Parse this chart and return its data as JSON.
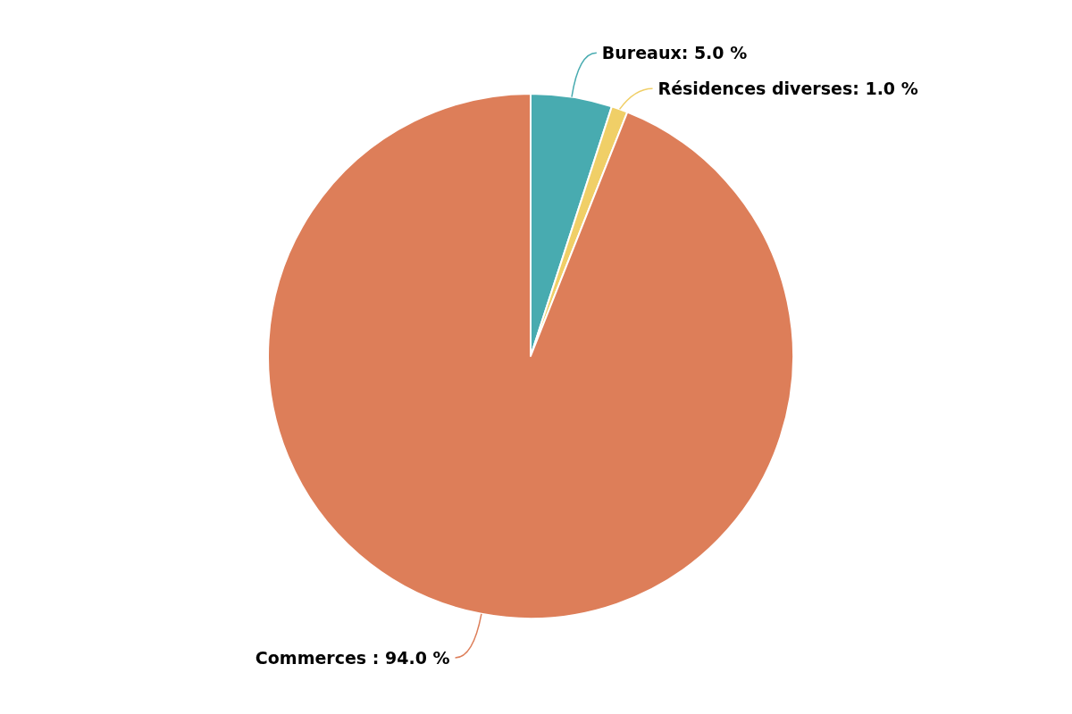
{
  "chart_data": {
    "type": "pie",
    "categories": [
      "Bureaux",
      "Résidences diverses",
      "Commerces"
    ],
    "values": [
      5.0,
      1.0,
      94.0
    ],
    "value_labels": [
      ": 5.0 %",
      ": 1.0 %",
      " : 94.0 %"
    ],
    "colors": [
      "#48abb0",
      "#f0cf67",
      "#dd7e59"
    ],
    "legend": false
  }
}
